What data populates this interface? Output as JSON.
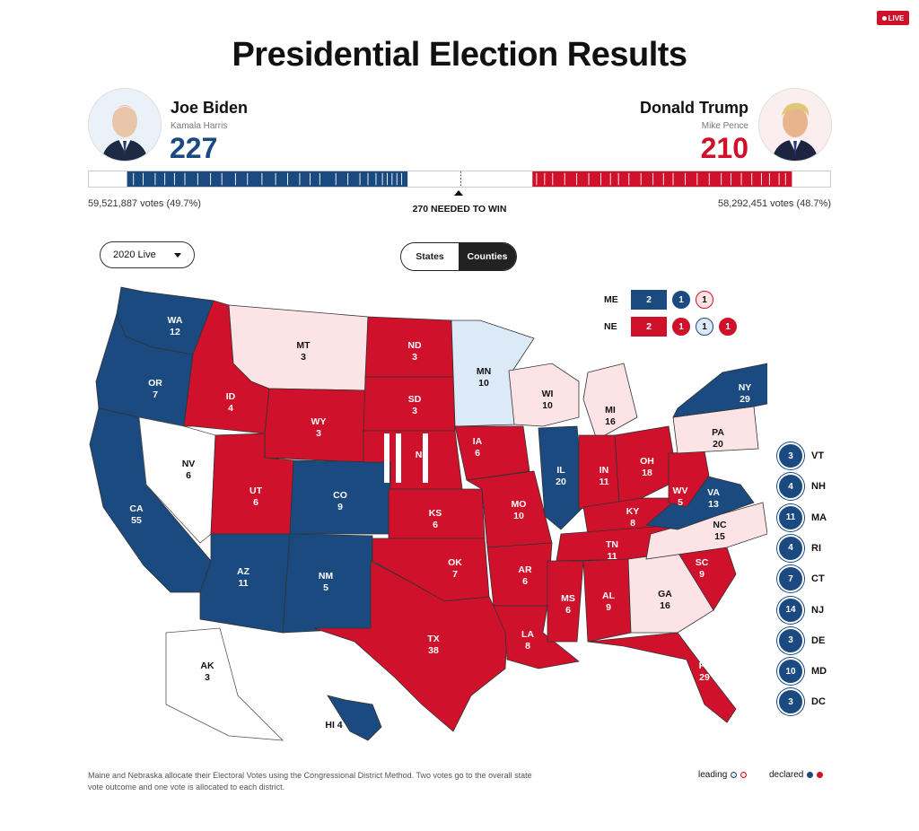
{
  "header": {
    "live_label": "LIVE",
    "title": "Presidential Election Results"
  },
  "colors": {
    "dem": "#1a4a7f",
    "rep": "#d0112b",
    "dem_lean": "#dceaf7",
    "rep_lean": "#fbe3e6"
  },
  "candidates": {
    "dem": {
      "name": "Joe Biden",
      "running_mate": "Kamala Harris",
      "electoral_votes": "227",
      "popular": "59,521,887 votes (49.7%)",
      "avatar_icon": "biden-portrait"
    },
    "rep": {
      "name": "Donald Trump",
      "running_mate": "Mike Pence",
      "electoral_votes": "210",
      "popular": "58,292,451 votes (48.7%)",
      "avatar_icon": "trump-portrait"
    }
  },
  "bar": {
    "needed_label": "270 NEEDED TO WIN",
    "threshold": 270,
    "total": 538
  },
  "controls": {
    "dropdown_value": "2020 Live",
    "toggle_states": "States",
    "toggle_counties": "Counties",
    "active_toggle": "Counties"
  },
  "states": [
    {
      "abbr": "WA",
      "ev": "12",
      "status": "dem"
    },
    {
      "abbr": "OR",
      "ev": "7",
      "status": "dem"
    },
    {
      "abbr": "CA",
      "ev": "55",
      "status": "dem"
    },
    {
      "abbr": "NV",
      "ev": "6",
      "status": "none"
    },
    {
      "abbr": "ID",
      "ev": "4",
      "status": "rep"
    },
    {
      "abbr": "MT",
      "ev": "3",
      "status": "rep_lean"
    },
    {
      "abbr": "WY",
      "ev": "3",
      "status": "rep"
    },
    {
      "abbr": "UT",
      "ev": "6",
      "status": "rep"
    },
    {
      "abbr": "AZ",
      "ev": "11",
      "status": "dem"
    },
    {
      "abbr": "CO",
      "ev": "9",
      "status": "dem"
    },
    {
      "abbr": "NM",
      "ev": "5",
      "status": "dem"
    },
    {
      "abbr": "ND",
      "ev": "3",
      "status": "rep"
    },
    {
      "abbr": "SD",
      "ev": "3",
      "status": "rep"
    },
    {
      "abbr": "NE",
      "ev": "",
      "status": "rep"
    },
    {
      "abbr": "KS",
      "ev": "6",
      "status": "rep"
    },
    {
      "abbr": "OK",
      "ev": "7",
      "status": "rep"
    },
    {
      "abbr": "TX",
      "ev": "38",
      "status": "rep"
    },
    {
      "abbr": "MN",
      "ev": "10",
      "status": "dem_lean"
    },
    {
      "abbr": "IA",
      "ev": "6",
      "status": "rep"
    },
    {
      "abbr": "MO",
      "ev": "10",
      "status": "rep"
    },
    {
      "abbr": "AR",
      "ev": "6",
      "status": "rep"
    },
    {
      "abbr": "LA",
      "ev": "8",
      "status": "rep"
    },
    {
      "abbr": "WI",
      "ev": "10",
      "status": "rep_lean"
    },
    {
      "abbr": "IL",
      "ev": "20",
      "status": "dem"
    },
    {
      "abbr": "MI",
      "ev": "16",
      "status": "rep_lean"
    },
    {
      "abbr": "IN",
      "ev": "11",
      "status": "rep"
    },
    {
      "abbr": "OH",
      "ev": "18",
      "status": "rep"
    },
    {
      "abbr": "KY",
      "ev": "8",
      "status": "rep"
    },
    {
      "abbr": "TN",
      "ev": "11",
      "status": "rep"
    },
    {
      "abbr": "MS",
      "ev": "6",
      "status": "rep"
    },
    {
      "abbr": "AL",
      "ev": "9",
      "status": "rep"
    },
    {
      "abbr": "GA",
      "ev": "16",
      "status": "rep_lean"
    },
    {
      "abbr": "FL",
      "ev": "29",
      "status": "rep"
    },
    {
      "abbr": "SC",
      "ev": "9",
      "status": "rep"
    },
    {
      "abbr": "NC",
      "ev": "15",
      "status": "rep_lean"
    },
    {
      "abbr": "VA",
      "ev": "13",
      "status": "dem"
    },
    {
      "abbr": "WV",
      "ev": "5",
      "status": "rep"
    },
    {
      "abbr": "PA",
      "ev": "20",
      "status": "rep_lean"
    },
    {
      "abbr": "NY",
      "ev": "29",
      "status": "dem"
    },
    {
      "abbr": "ME",
      "ev": "",
      "status": "dem"
    },
    {
      "abbr": "AK",
      "ev": "3",
      "status": "none"
    },
    {
      "abbr": "HI",
      "ev": "4",
      "status": "dem"
    }
  ],
  "hi_label": "HI 4",
  "split_states": [
    {
      "abbr": "ME",
      "box": "2",
      "box_party": "dem",
      "districts": [
        {
          "v": "1",
          "status": "dem"
        },
        {
          "v": "1",
          "status": "rep_lean"
        }
      ]
    },
    {
      "abbr": "NE",
      "box": "2",
      "box_party": "rep",
      "districts": [
        {
          "v": "1",
          "status": "rep"
        },
        {
          "v": "1",
          "status": "dem_lean"
        },
        {
          "v": "1",
          "status": "rep"
        }
      ]
    }
  ],
  "small_states": [
    {
      "abbr": "VT",
      "ev": "3"
    },
    {
      "abbr": "NH",
      "ev": "4"
    },
    {
      "abbr": "MA",
      "ev": "11"
    },
    {
      "abbr": "RI",
      "ev": "4"
    },
    {
      "abbr": "CT",
      "ev": "7"
    },
    {
      "abbr": "NJ",
      "ev": "14"
    },
    {
      "abbr": "DE",
      "ev": "3"
    },
    {
      "abbr": "MD",
      "ev": "10"
    },
    {
      "abbr": "DC",
      "ev": "3"
    }
  ],
  "footnote": "Maine and Nebraska allocate their Electoral Votes using the Congressional District Method. Two votes go to the overall state vote outcome and one vote is allocated to each district.",
  "legend": {
    "leading": "leading",
    "declared": "declared"
  }
}
